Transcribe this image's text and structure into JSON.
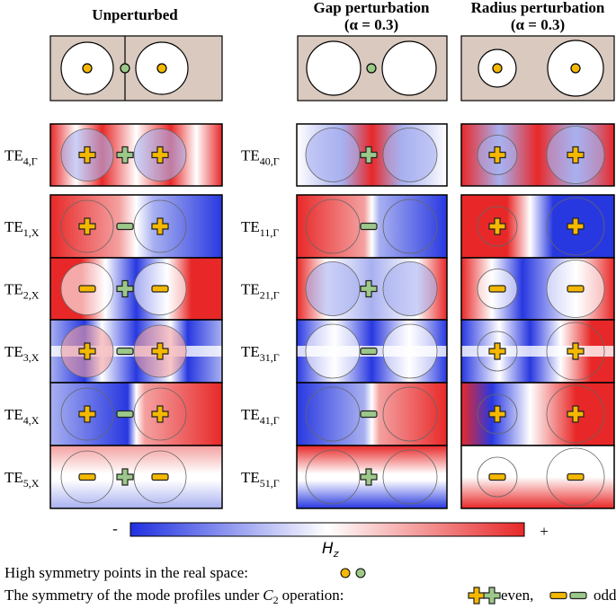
{
  "headers": [
    {
      "title": "Unperturbed"
    },
    {
      "title": "Gap perturbation",
      "param": "(α = 0.3)"
    },
    {
      "title": "Radius perturbation",
      "param": "(α = 0.3)"
    }
  ],
  "rows": [
    {
      "left": {
        "base": "TE",
        "sub": "4,Γ"
      },
      "right": {
        "base": "TE",
        "sub": "40,Γ"
      }
    },
    {
      "left": {
        "base": "TE",
        "sub": "1,X"
      },
      "right": {
        "base": "TE",
        "sub": "11,Γ"
      }
    },
    {
      "left": {
        "base": "TE",
        "sub": "2,X"
      },
      "right": {
        "base": "TE",
        "sub": "21,Γ"
      }
    },
    {
      "left": {
        "base": "TE",
        "sub": "3,X"
      },
      "right": {
        "base": "TE",
        "sub": "31,Γ"
      }
    },
    {
      "left": {
        "base": "TE",
        "sub": "4,X"
      },
      "right": {
        "base": "TE",
        "sub": "41,Γ"
      }
    },
    {
      "left": {
        "base": "TE",
        "sub": "5,X"
      },
      "right": {
        "base": "TE",
        "sub": "51,Γ"
      }
    }
  ],
  "colorbar": {
    "min": "-",
    "max": "+",
    "label": {
      "base": "H",
      "sub": "z"
    }
  },
  "legend": {
    "points": "High symmetry points in the real space:",
    "symmetry": "The symmetry of the mode profiles under",
    "operator": {
      "base": "C",
      "sub": "2"
    },
    "operation": "operation:",
    "even": "even,",
    "odd": "odd"
  }
}
